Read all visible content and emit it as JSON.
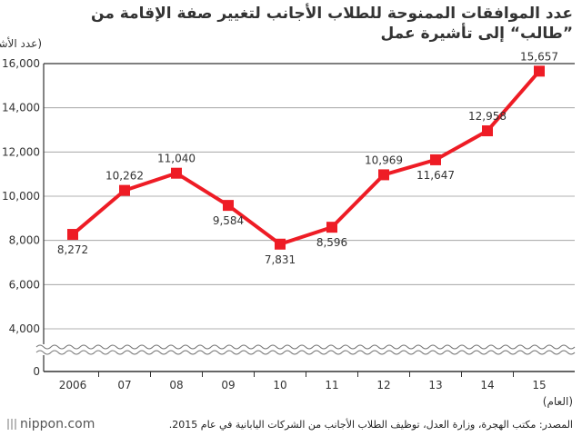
{
  "title": {
    "line1": "عدد الموافقات الممنوحة للطلاب الأجانب لتغيير صفة الإقامة من",
    "line2": "”طالب“ إلى تأشيرة عمل"
  },
  "source": "المصدر: مكتب الهجرة، وزارة العدل، توظيف الطلاب الأجانب من الشركات اليابانية في عام 2015.",
  "brand": "nippon.com",
  "colors": {
    "line": "#ee1c25",
    "axis": "#333333",
    "grid": "#999999",
    "text": "#333333"
  },
  "chart_data": {
    "type": "line",
    "title": "عدد الموافقات الممنوحة للطلاب الأجانب لتغيير صفة الإقامة من ”طالب“ إلى تأشيرة عمل",
    "ylabel": "(عدد الأشخاص)",
    "xlabel": "(العام)",
    "categories": [
      "2006",
      "07",
      "08",
      "09",
      "10",
      "11",
      "12",
      "13",
      "14",
      "15"
    ],
    "series": [
      {
        "values": [
          8272,
          10262,
          11040,
          9584,
          7831,
          8596,
          10969,
          11647,
          12958,
          15657
        ],
        "labels": [
          "8,272",
          "10,262",
          "11,040",
          "9,584",
          "7,831",
          "8,596",
          "10,969",
          "11,647",
          "12,958",
          "15,657"
        ]
      }
    ],
    "yticks": [
      {
        "value": 16000,
        "label": "16,000"
      },
      {
        "value": 14000,
        "label": "14,000"
      },
      {
        "value": 12000,
        "label": "12,000"
      },
      {
        "value": 10000,
        "label": "10,000"
      },
      {
        "value": 8000,
        "label": "8,000"
      },
      {
        "value": 6000,
        "label": "6,000"
      },
      {
        "value": 4000,
        "label": "4,000"
      },
      {
        "value": 0,
        "label": "0"
      }
    ],
    "ylim": [
      0,
      16000
    ],
    "axis_break": true,
    "grid": true,
    "label_positions": [
      "below",
      "above",
      "above",
      "below",
      "below",
      "below",
      "above",
      "below",
      "above",
      "above"
    ]
  }
}
